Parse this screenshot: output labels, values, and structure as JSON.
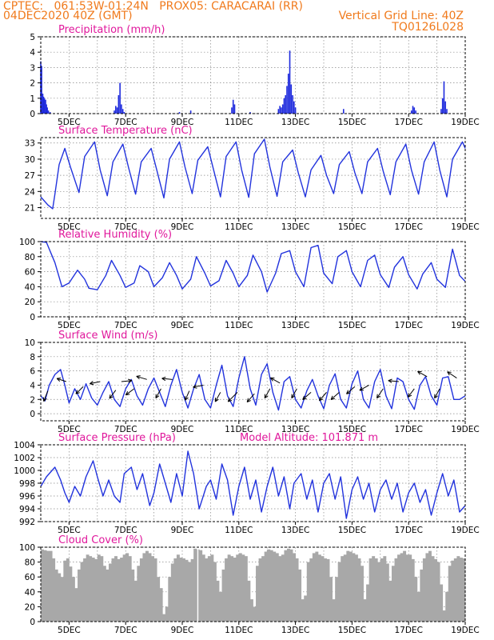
{
  "header": {
    "line1_left": "CPTEC:   061:53W-01:24N   PROX05: CARACARAI (RR)",
    "line2_left": "04DEC2020 40Z (GMT)",
    "line2_right": "Vertical Grid Line: 40Z",
    "line3_right": "TQ0126L028"
  },
  "colors": {
    "header": "#f07a1c",
    "panel_title": "#e0189c",
    "series": "#2233dd",
    "precip_bar": "#1f2bdd",
    "cloud_bar": "#a8a8a8",
    "grid": "#888888",
    "wind_arrow": "#000000"
  },
  "date_ticks": [
    "5DEC",
    "7DEC",
    "9DEC",
    "11DEC",
    "13DEC",
    "15DEC",
    "17DEC",
    "19DEC"
  ],
  "chart_data": [
    {
      "id": "precipitation",
      "type": "bar",
      "title": "Precipitation (mm/h)",
      "ylim": [
        0,
        5
      ],
      "yticks": [
        0,
        1,
        2,
        3,
        4,
        5
      ],
      "grid": true,
      "units": "mm/h",
      "x_day_range": [
        4,
        19
      ],
      "points": [
        [
          4.0,
          3.4
        ],
        [
          4.03,
          3.1
        ],
        [
          4.07,
          1.3
        ],
        [
          4.1,
          1.1
        ],
        [
          4.13,
          1.0
        ],
        [
          4.17,
          0.9
        ],
        [
          4.2,
          0.6
        ],
        [
          4.23,
          0.4
        ],
        [
          4.27,
          0.2
        ],
        [
          4.33,
          0.1
        ],
        [
          6.6,
          0.2
        ],
        [
          6.65,
          0.5
        ],
        [
          6.7,
          0.4
        ],
        [
          6.75,
          1.2
        ],
        [
          6.8,
          2.0
        ],
        [
          6.85,
          0.6
        ],
        [
          6.9,
          0.3
        ],
        [
          6.95,
          0.1
        ],
        [
          8.9,
          0.1
        ],
        [
          9.3,
          0.2
        ],
        [
          10.75,
          0.4
        ],
        [
          10.8,
          0.9
        ],
        [
          10.85,
          0.6
        ],
        [
          11.4,
          0.1
        ],
        [
          12.4,
          0.3
        ],
        [
          12.45,
          0.5
        ],
        [
          12.5,
          0.4
        ],
        [
          12.55,
          0.6
        ],
        [
          12.6,
          1.0
        ],
        [
          12.65,
          1.2
        ],
        [
          12.7,
          1.8
        ],
        [
          12.75,
          2.6
        ],
        [
          12.8,
          4.1
        ],
        [
          12.85,
          1.9
        ],
        [
          12.9,
          1.2
        ],
        [
          12.95,
          0.8
        ],
        [
          13.0,
          0.4
        ],
        [
          14.7,
          0.3
        ],
        [
          17.1,
          0.2
        ],
        [
          17.15,
          0.5
        ],
        [
          17.2,
          0.4
        ],
        [
          17.25,
          0.2
        ],
        [
          18.15,
          0.3
        ],
        [
          18.2,
          1.0
        ],
        [
          18.25,
          2.1
        ],
        [
          18.3,
          0.8
        ],
        [
          18.35,
          0.3
        ]
      ]
    },
    {
      "id": "surface_temperature",
      "type": "line",
      "title": "Surface Temperature (nC)",
      "ylim": [
        19,
        34
      ],
      "yticks": [
        21,
        24,
        27,
        30,
        33
      ],
      "grid": true,
      "x_day_range": [
        4,
        19
      ],
      "x_day": [
        4.0,
        4.25,
        4.42,
        4.5,
        4.65,
        4.85,
        5.05,
        5.35,
        5.55,
        5.9,
        6.1,
        6.35,
        6.55,
        6.9,
        7.1,
        7.35,
        7.55,
        7.9,
        8.1,
        8.35,
        8.55,
        8.9,
        9.1,
        9.35,
        9.55,
        9.9,
        10.1,
        10.35,
        10.55,
        10.9,
        11.1,
        11.35,
        11.55,
        11.9,
        12.1,
        12.35,
        12.55,
        12.9,
        13.1,
        13.35,
        13.55,
        13.9,
        14.1,
        14.35,
        14.55,
        14.9,
        15.1,
        15.35,
        15.55,
        15.9,
        16.1,
        16.35,
        16.55,
        16.9,
        17.1,
        17.35,
        17.55,
        17.9,
        18.1,
        18.35,
        18.55,
        18.9,
        19.0
      ],
      "y": [
        23.0,
        21.5,
        20.8,
        23.5,
        29.0,
        32.0,
        28.5,
        23.8,
        30.5,
        33.2,
        28.0,
        23.2,
        29.5,
        32.8,
        28.5,
        23.5,
        29.5,
        32.0,
        28.0,
        22.8,
        30.0,
        33.2,
        28.5,
        23.6,
        29.8,
        32.3,
        28.2,
        23.0,
        30.5,
        33.2,
        28.0,
        22.9,
        31.0,
        33.7,
        28.5,
        23.1,
        29.5,
        31.7,
        27.5,
        23.0,
        28.0,
        30.7,
        27.0,
        23.6,
        29.0,
        31.4,
        27.5,
        23.6,
        29.5,
        32.0,
        27.8,
        23.4,
        29.5,
        32.8,
        28.0,
        23.5,
        29.5,
        33.2,
        28.0,
        23.0,
        30.0,
        33.2,
        32.0
      ]
    },
    {
      "id": "relative_humidity",
      "type": "line",
      "title": "Relative Humidity (%)",
      "ylim": [
        0,
        100
      ],
      "yticks": [
        0,
        20,
        40,
        60,
        80,
        100
      ],
      "grid": true,
      "x_day_range": [
        4,
        19
      ],
      "x_day": [
        4.0,
        4.2,
        4.5,
        4.75,
        5.0,
        5.3,
        5.55,
        5.7,
        6.0,
        6.3,
        6.5,
        6.8,
        7.0,
        7.3,
        7.5,
        7.8,
        8.0,
        8.3,
        8.55,
        8.8,
        9.0,
        9.3,
        9.5,
        9.8,
        10.0,
        10.3,
        10.55,
        10.8,
        11.0,
        11.3,
        11.5,
        11.8,
        12.0,
        12.3,
        12.5,
        12.8,
        13.0,
        13.3,
        13.55,
        13.8,
        14.0,
        14.3,
        14.5,
        14.8,
        15.0,
        15.3,
        15.55,
        15.8,
        16.0,
        16.3,
        16.5,
        16.8,
        17.0,
        17.3,
        17.5,
        17.8,
        18.0,
        18.3,
        18.55,
        18.8,
        19.0
      ],
      "y": [
        100,
        99,
        72,
        40,
        45,
        62,
        50,
        38,
        36,
        55,
        75,
        55,
        39,
        45,
        68,
        60,
        40,
        52,
        72,
        55,
        37,
        50,
        80,
        58,
        41,
        48,
        75,
        58,
        40,
        55,
        82,
        60,
        33,
        58,
        84,
        88,
        60,
        40,
        92,
        95,
        58,
        44,
        80,
        88,
        60,
        40,
        75,
        82,
        56,
        39,
        66,
        80,
        56,
        37,
        57,
        72,
        50,
        39,
        90,
        55,
        47
      ]
    },
    {
      "id": "surface_wind",
      "type": "line",
      "title": "Surface Wind (m/s)",
      "ylim": [
        -1,
        10
      ],
      "yticks": [
        0,
        2,
        4,
        6,
        8,
        10
      ],
      "grid": true,
      "x_day_range": [
        4,
        19
      ],
      "x_day": [
        4.0,
        4.15,
        4.3,
        4.5,
        4.7,
        4.85,
        5.0,
        5.2,
        5.4,
        5.6,
        5.8,
        6.0,
        6.2,
        6.4,
        6.6,
        6.8,
        7.0,
        7.2,
        7.4,
        7.6,
        7.8,
        8.0,
        8.2,
        8.4,
        8.6,
        8.8,
        9.0,
        9.2,
        9.4,
        9.6,
        9.8,
        10.0,
        10.2,
        10.4,
        10.6,
        10.8,
        11.0,
        11.2,
        11.4,
        11.6,
        11.8,
        12.0,
        12.2,
        12.4,
        12.6,
        12.8,
        13.0,
        13.2,
        13.4,
        13.6,
        13.8,
        14.0,
        14.2,
        14.4,
        14.6,
        14.8,
        15.0,
        15.2,
        15.4,
        15.6,
        15.8,
        16.0,
        16.2,
        16.4,
        16.6,
        16.8,
        17.0,
        17.2,
        17.4,
        17.6,
        17.8,
        18.0,
        18.2,
        18.4,
        18.6,
        18.8,
        19.0
      ],
      "y": [
        2.5,
        1.8,
        4.0,
        5.5,
        6.2,
        4.0,
        1.5,
        3.5,
        2.0,
        4.2,
        2.2,
        1.2,
        3.0,
        4.5,
        2.0,
        1.0,
        3.5,
        4.8,
        2.5,
        1.2,
        3.5,
        5.0,
        3.0,
        1.0,
        4.0,
        6.2,
        3.0,
        0.8,
        3.5,
        5.5,
        2.0,
        0.8,
        4.0,
        6.8,
        2.5,
        1.0,
        5.0,
        8.0,
        3.5,
        1.2,
        5.5,
        7.0,
        3.0,
        0.5,
        4.5,
        5.2,
        2.0,
        0.8,
        3.2,
        4.8,
        2.5,
        0.7,
        4.0,
        5.6,
        2.0,
        0.8,
        4.2,
        6.0,
        2.0,
        0.8,
        4.5,
        6.2,
        2.5,
        0.7,
        5.0,
        4.5,
        2.0,
        0.6,
        4.0,
        5.2,
        2.5,
        1.2,
        5.0,
        5.2,
        2.0,
        2.0,
        2.5
      ],
      "arrows": [
        {
          "day": 4.25,
          "speed": 3.2,
          "u": -0.4,
          "v": -1.0
        },
        {
          "day": 4.9,
          "speed": 4.5,
          "u": -0.9,
          "v": 0.3
        },
        {
          "day": 5.5,
          "speed": 3.8,
          "u": -0.7,
          "v": -0.7
        },
        {
          "day": 6.1,
          "speed": 4.5,
          "u": -1.0,
          "v": -0.2
        },
        {
          "day": 6.65,
          "speed": 3.3,
          "u": -0.6,
          "v": -0.8
        },
        {
          "day": 6.85,
          "speed": 4.5,
          "u": 1.0,
          "v": 0.1
        },
        {
          "day": 7.3,
          "speed": 3.5,
          "u": -0.8,
          "v": -0.6
        },
        {
          "day": 7.75,
          "speed": 4.8,
          "u": -1.0,
          "v": 0.3
        },
        {
          "day": 8.25,
          "speed": 3.5,
          "u": -0.5,
          "v": -0.9
        },
        {
          "day": 8.65,
          "speed": 4.8,
          "u": -1.0,
          "v": 0.1
        },
        {
          "day": 9.25,
          "speed": 3.2,
          "u": -0.4,
          "v": -0.9
        },
        {
          "day": 9.75,
          "speed": 4.0,
          "u": -1.0,
          "v": -0.2
        },
        {
          "day": 10.35,
          "speed": 3.0,
          "u": -0.5,
          "v": -0.9
        },
        {
          "day": 10.95,
          "speed": 3.0,
          "u": -0.9,
          "v": -0.9
        },
        {
          "day": 11.55,
          "speed": 2.8,
          "u": -0.7,
          "v": -0.8
        },
        {
          "day": 12.1,
          "speed": 3.5,
          "u": -0.5,
          "v": -0.9
        },
        {
          "day": 12.45,
          "speed": 4.3,
          "u": -0.9,
          "v": 0.5
        },
        {
          "day": 13.05,
          "speed": 3.5,
          "u": -0.5,
          "v": -0.9
        },
        {
          "day": 13.55,
          "speed": 3.0,
          "u": -0.8,
          "v": -0.7
        },
        {
          "day": 14.1,
          "speed": 3.0,
          "u": -0.7,
          "v": -0.8
        },
        {
          "day": 14.55,
          "speed": 3.0,
          "u": -0.8,
          "v": -0.7
        },
        {
          "day": 15.1,
          "speed": 3.8,
          "u": -0.8,
          "v": -0.7
        },
        {
          "day": 15.6,
          "speed": 4.0,
          "u": -0.9,
          "v": -0.5
        },
        {
          "day": 16.1,
          "speed": 3.5,
          "u": -0.6,
          "v": -0.9
        },
        {
          "day": 16.65,
          "speed": 4.5,
          "u": -1.0,
          "v": 0.1
        },
        {
          "day": 17.2,
          "speed": 3.5,
          "u": -0.6,
          "v": -0.8
        },
        {
          "day": 17.65,
          "speed": 5.2,
          "u": -0.9,
          "v": 0.5
        },
        {
          "day": 18.1,
          "speed": 3.5,
          "u": -0.5,
          "v": -0.9
        },
        {
          "day": 18.7,
          "speed": 5.0,
          "u": -0.9,
          "v": 0.6
        }
      ]
    },
    {
      "id": "surface_pressure",
      "type": "line",
      "title": "Surface Pressure (hPa)",
      "subtitle": "Model Altitude: 101.871 m",
      "ylim": [
        992,
        1004
      ],
      "yticks": [
        992,
        994,
        996,
        998,
        1000,
        1002,
        1004
      ],
      "grid": true,
      "x_day_range": [
        4,
        19
      ],
      "x_day": [
        4.0,
        4.2,
        4.5,
        4.7,
        4.85,
        5.0,
        5.2,
        5.4,
        5.6,
        5.85,
        6.0,
        6.2,
        6.4,
        6.6,
        6.8,
        6.95,
        7.2,
        7.4,
        7.6,
        7.85,
        8.0,
        8.2,
        8.4,
        8.6,
        8.8,
        9.0,
        9.2,
        9.4,
        9.6,
        9.85,
        10.0,
        10.2,
        10.4,
        10.6,
        10.8,
        11.0,
        11.2,
        11.4,
        11.6,
        11.8,
        12.0,
        12.2,
        12.4,
        12.6,
        12.8,
        12.95,
        13.2,
        13.4,
        13.6,
        13.8,
        14.0,
        14.2,
        14.4,
        14.6,
        14.8,
        15.0,
        15.2,
        15.4,
        15.6,
        15.8,
        16.0,
        16.2,
        16.4,
        16.6,
        16.8,
        17.0,
        17.2,
        17.4,
        17.6,
        17.8,
        18.0,
        18.2,
        18.4,
        18.6,
        18.8,
        19.0
      ],
      "y": [
        997.5,
        999.0,
        1000.5,
        998.5,
        996.5,
        995.0,
        997.5,
        996.0,
        999.0,
        1001.5,
        999.0,
        996.0,
        998.5,
        996.0,
        995.0,
        999.5,
        1000.5,
        997.0,
        999.5,
        994.5,
        996.5,
        1001.0,
        998.0,
        995.0,
        999.5,
        996.0,
        1003.0,
        999.5,
        994.0,
        997.5,
        998.5,
        995.5,
        1001.0,
        998.5,
        993.0,
        997.5,
        1000.5,
        995.5,
        998.5,
        993.5,
        997.5,
        1000.5,
        996.0,
        999.0,
        994.0,
        998.0,
        999.5,
        995.5,
        998.5,
        993.5,
        998.0,
        999.5,
        995.5,
        999.0,
        992.5,
        997.0,
        999.0,
        995.5,
        998.0,
        993.5,
        997.0,
        998.5,
        995.5,
        998.0,
        993.5,
        996.5,
        998.0,
        995.0,
        997.0,
        993.0,
        996.5,
        999.5,
        996.0,
        998.5,
        993.5,
        994.5
      ]
    },
    {
      "id": "cloud_cover",
      "type": "bar",
      "title": "Cloud Cover (%)",
      "ylim": [
        0,
        100
      ],
      "yticks": [
        0,
        20,
        40,
        60,
        80,
        100
      ],
      "grid": true,
      "x_day_range": [
        4,
        19
      ],
      "x_day": [
        4.0,
        4.1,
        4.2,
        4.3,
        4.4,
        4.5,
        4.6,
        4.7,
        4.8,
        4.9,
        5.0,
        5.1,
        5.2,
        5.3,
        5.4,
        5.5,
        5.6,
        5.7,
        5.8,
        5.9,
        6.0,
        6.1,
        6.2,
        6.3,
        6.4,
        6.5,
        6.6,
        6.7,
        6.8,
        6.9,
        7.0,
        7.1,
        7.2,
        7.3,
        7.4,
        7.5,
        7.6,
        7.7,
        7.8,
        7.9,
        8.0,
        8.1,
        8.2,
        8.3,
        8.4,
        8.5,
        8.6,
        8.7,
        8.8,
        8.9,
        9.0,
        9.1,
        9.2,
        9.3,
        9.4,
        9.5,
        9.6,
        9.7,
        9.8,
        9.9,
        10.0,
        10.1,
        10.2,
        10.3,
        10.4,
        10.5,
        10.6,
        10.7,
        10.8,
        10.9,
        11.0,
        11.1,
        11.2,
        11.3,
        11.4,
        11.5,
        11.6,
        11.7,
        11.8,
        11.9,
        12.0,
        12.1,
        12.2,
        12.3,
        12.4,
        12.5,
        12.6,
        12.7,
        12.8,
        12.9,
        13.0,
        13.1,
        13.2,
        13.3,
        13.4,
        13.5,
        13.6,
        13.7,
        13.8,
        13.9,
        14.0,
        14.1,
        14.2,
        14.3,
        14.4,
        14.5,
        14.6,
        14.7,
        14.8,
        14.9,
        15.0,
        15.1,
        15.2,
        15.3,
        15.4,
        15.5,
        15.6,
        15.7,
        15.8,
        15.9,
        16.0,
        16.1,
        16.2,
        16.3,
        16.4,
        16.5,
        16.6,
        16.7,
        16.8,
        16.9,
        17.0,
        17.1,
        17.2,
        17.3,
        17.4,
        17.5,
        17.6,
        17.7,
        17.8,
        17.9,
        18.0,
        18.1,
        18.2,
        18.3,
        18.4,
        18.5,
        18.6,
        18.7,
        18.8,
        18.9
      ],
      "values": [
        97,
        96,
        95,
        95,
        85,
        70,
        65,
        60,
        82,
        85,
        74,
        60,
        45,
        70,
        80,
        85,
        90,
        88,
        86,
        84,
        90,
        88,
        75,
        70,
        78,
        85,
        88,
        84,
        86,
        90,
        92,
        88,
        70,
        55,
        75,
        85,
        92,
        95,
        92,
        88,
        85,
        60,
        45,
        10,
        20,
        60,
        78,
        85,
        90,
        86,
        85,
        83,
        80,
        84,
        98,
        97,
        96,
        90,
        85,
        88,
        90,
        80,
        55,
        40,
        70,
        85,
        90,
        88,
        86,
        90,
        92,
        90,
        88,
        55,
        30,
        20,
        75,
        85,
        88,
        94,
        97,
        96,
        94,
        92,
        88,
        90,
        96,
        98,
        97,
        92,
        85,
        70,
        30,
        35,
        80,
        85,
        92,
        94,
        90,
        88,
        85,
        84,
        60,
        30,
        60,
        80,
        88,
        90,
        95,
        94,
        92,
        90,
        85,
        75,
        30,
        50,
        85,
        88,
        85,
        80,
        85,
        88,
        78,
        55,
        75,
        85,
        90,
        92,
        95,
        90,
        90,
        84,
        60,
        40,
        70,
        85,
        92,
        95,
        88,
        84,
        80,
        50,
        15,
        40,
        75,
        82,
        85,
        88,
        86,
        85
      ]
    }
  ]
}
